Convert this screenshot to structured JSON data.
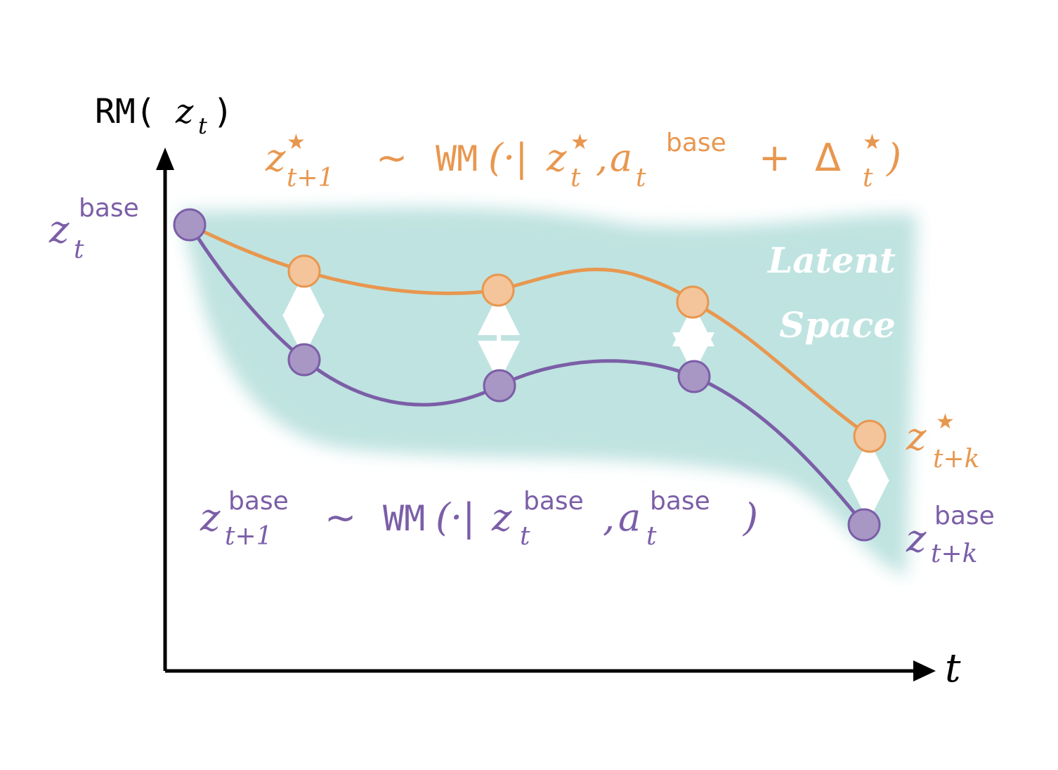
{
  "y_axis_label": [
    "RM(",
    "z",
    "t",
    ")"
  ],
  "x_axis_label": "t",
  "start_label": [
    "z",
    "t",
    "base"
  ],
  "orange_equation": [
    "z",
    "★",
    "t+1",
    "∼",
    "WM",
    "(·|",
    "z",
    "★",
    "t",
    ",",
    "a",
    "base",
    "t",
    "+",
    "Δ",
    "★",
    "t",
    ")"
  ],
  "purple_equation": [
    "z",
    "base",
    "t+1",
    "∼",
    "WM",
    "(·|",
    "z",
    "base",
    "t",
    ",",
    "a",
    "base",
    "t",
    ")"
  ],
  "latent_space": [
    "Latent",
    "Space"
  ],
  "end_orange_label": [
    "z",
    "★",
    "t+k"
  ],
  "end_purple_label": [
    "z",
    "base",
    "t+k"
  ]
}
